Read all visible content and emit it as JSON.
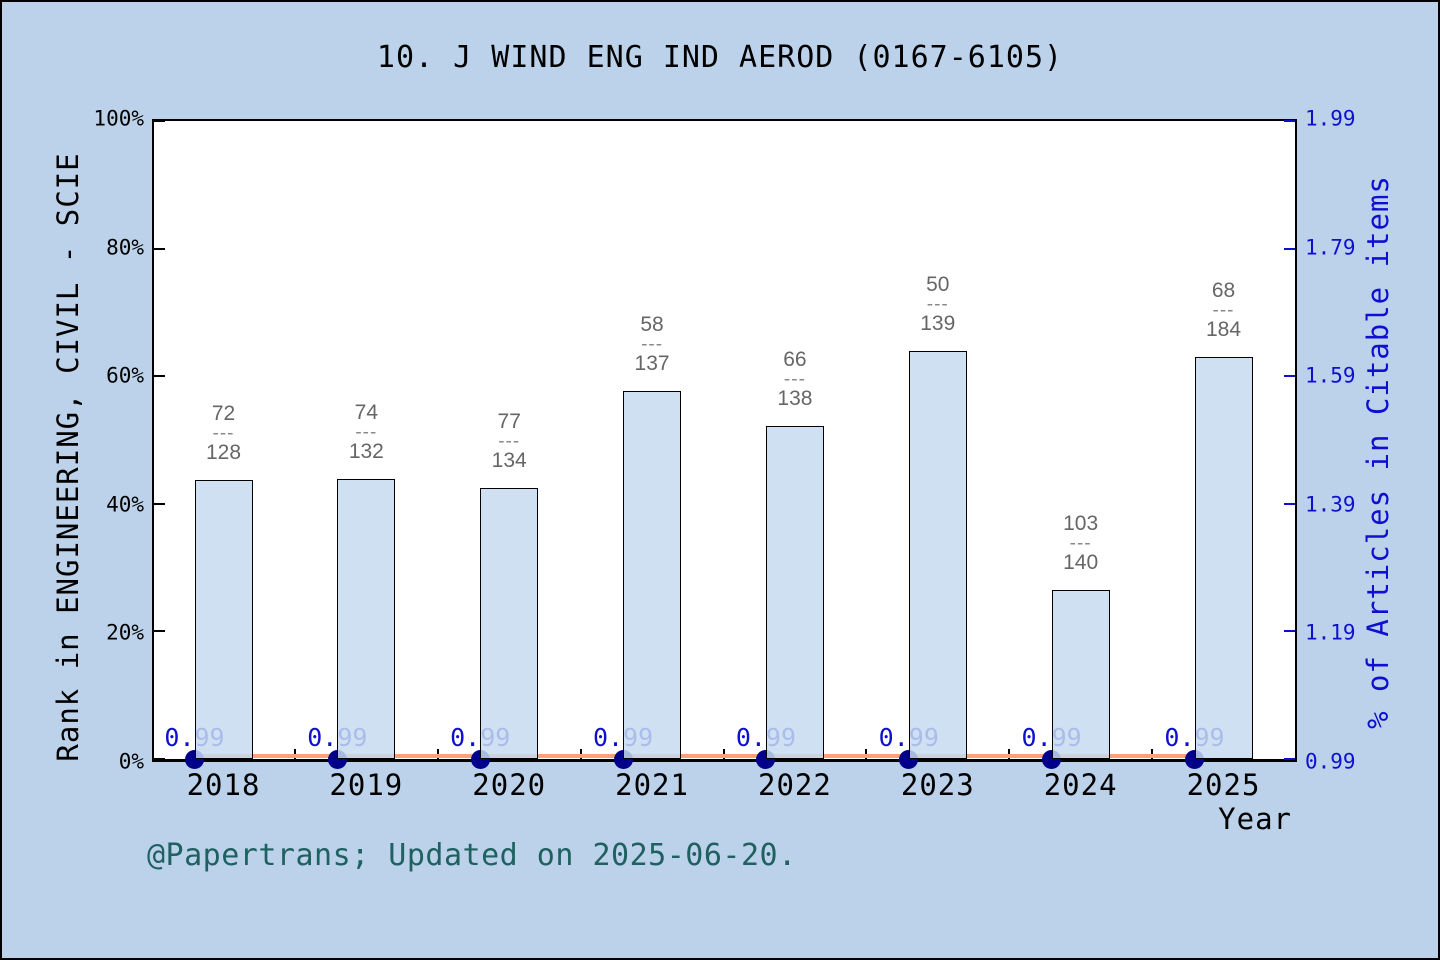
{
  "title": "10. J WIND ENG IND AEROD (0167-6105)",
  "footer": "@Papertrans; Updated on 2025-06-20.",
  "colors": {
    "background": "#bcd2ea",
    "plot_background": "#ffffff",
    "bar_fill": "#c6dbef",
    "bar_edge": "#000000",
    "right_axis_blue": "#0f0fd0",
    "marker_navy": "#00008b",
    "line_salmon": "#ffa07a",
    "fraction_gray": "#666666",
    "footer_teal": "#1f6060"
  },
  "left_axis": {
    "label": "Rank in ENGINEERING, CIVIL - SCIE",
    "ticks": [
      "0%",
      "20%",
      "40%",
      "60%",
      "80%",
      "100%"
    ]
  },
  "right_axis": {
    "label": "% of Articles in Citable items",
    "ticks": [
      "0.99",
      "1.19",
      "1.39",
      "1.59",
      "1.79",
      "1.99"
    ]
  },
  "x_axis": {
    "label": "Year"
  },
  "chart_data": {
    "type": "bar",
    "subtype": "bar + line overlay, dual y-axis",
    "categories": [
      "2018",
      "2019",
      "2020",
      "2021",
      "2022",
      "2023",
      "2024",
      "2025"
    ],
    "series": [
      {
        "name": "Rank in ENGINEERING, CIVIL - SCIE (bars, left axis, % percentile)",
        "axis": "left",
        "values": [
          43.75,
          43.94,
          42.54,
          57.66,
          52.17,
          64.03,
          26.43,
          63.04
        ],
        "fraction_separator": "---",
        "labels": [
          {
            "numerator": "72",
            "denominator": "128"
          },
          {
            "numerator": "74",
            "denominator": "132"
          },
          {
            "numerator": "77",
            "denominator": "134"
          },
          {
            "numerator": "58",
            "denominator": "137"
          },
          {
            "numerator": "66",
            "denominator": "138"
          },
          {
            "numerator": "50",
            "denominator": "139"
          },
          {
            "numerator": "103",
            "denominator": "140"
          },
          {
            "numerator": "68",
            "denominator": "184"
          }
        ]
      },
      {
        "name": "% of Articles in Citable items (line with markers, right axis)",
        "axis": "right",
        "values": [
          0.99,
          0.99,
          0.99,
          0.99,
          0.99,
          0.99,
          0.99,
          0.99
        ],
        "point_labels": [
          "0.99",
          "0.99",
          "0.99",
          "0.99",
          "0.99",
          "0.99",
          "0.99",
          "0.99"
        ]
      }
    ],
    "left_ylim": [
      0,
      100
    ],
    "right_ylim": [
      0.99,
      1.99
    ],
    "grid": false,
    "legend": "none"
  }
}
